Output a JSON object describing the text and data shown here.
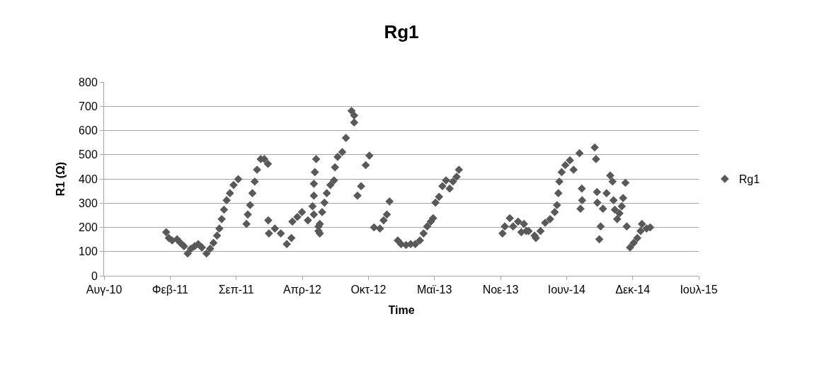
{
  "chart_data": {
    "type": "scatter",
    "title": "Rg1",
    "xlabel": "Time",
    "ylabel": "R1 (Ω)",
    "xlim": [
      "2010-08-12",
      "2015-07-17"
    ],
    "xticks": [
      {
        "value": "2010-08-12",
        "label": "Αυγ-10"
      },
      {
        "value": "2011-02-28",
        "label": "Φεβ-11"
      },
      {
        "value": "2011-09-16",
        "label": "Σεπ-11"
      },
      {
        "value": "2012-04-03",
        "label": "Απρ-12"
      },
      {
        "value": "2012-10-20",
        "label": "Οκτ-12"
      },
      {
        "value": "2013-05-08",
        "label": "Μαϊ-13"
      },
      {
        "value": "2013-11-24",
        "label": "Νοε-13"
      },
      {
        "value": "2014-06-12",
        "label": "Ιουν-14"
      },
      {
        "value": "2014-12-29",
        "label": "Δεκ-14"
      },
      {
        "value": "2015-07-17",
        "label": "Ιουλ-15"
      }
    ],
    "ylim": [
      0,
      800
    ],
    "yticks": [
      0,
      100,
      200,
      300,
      400,
      500,
      600,
      700,
      800
    ],
    "grid": "y",
    "legend": "right",
    "marker": "diamond",
    "series": [
      {
        "name": "Rg1",
        "color": "#595959",
        "x": [
          "2011-02-16",
          "2011-02-24",
          "2011-03-06",
          "2011-03-21",
          "2011-03-31",
          "2011-04-11",
          "2011-04-22",
          "2011-05-02",
          "2011-05-13",
          "2011-05-24",
          "2011-06-04",
          "2011-06-18",
          "2011-06-29",
          "2011-07-09",
          "2011-07-20",
          "2011-07-27",
          "2011-08-03",
          "2011-08-10",
          "2011-08-18",
          "2011-08-28",
          "2011-09-08",
          "2011-09-22",
          "2011-10-17",
          "2011-10-21",
          "2011-10-28",
          "2011-11-04",
          "2011-11-11",
          "2011-11-18",
          "2011-11-29",
          "2011-12-10",
          "2011-12-21",
          "2011-12-22",
          "2011-12-24",
          "2012-01-11",
          "2012-01-29",
          "2012-02-16",
          "2012-03-01",
          "2012-03-04",
          "2012-03-19",
          "2012-04-02",
          "2012-04-20",
          "2012-05-04",
          "2012-05-08",
          "2012-05-08",
          "2012-05-11",
          "2012-05-15",
          "2012-05-22",
          "2012-05-26",
          "2012-05-08",
          "2012-05-22",
          "2012-05-26",
          "2012-06-02",
          "2012-06-09",
          "2012-06-16",
          "2012-06-27",
          "2012-07-08",
          "2012-07-11",
          "2012-07-19",
          "2012-08-02",
          "2012-08-13",
          "2012-08-30",
          "2012-09-07",
          "2012-09-07",
          "2012-09-17",
          "2012-09-28",
          "2012-10-12",
          "2012-10-23",
          "2012-11-06",
          "2012-11-24",
          "2012-12-05",
          "2012-12-15",
          "2012-12-23",
          "2013-01-17",
          "2013-01-27",
          "2013-02-11",
          "2013-02-25",
          "2013-03-11",
          "2013-03-25",
          "2013-04-05",
          "2013-04-16",
          "2013-04-27",
          "2013-05-04",
          "2013-05-11",
          "2013-05-22",
          "2013-06-01",
          "2013-06-12",
          "2013-06-23",
          "2013-07-03",
          "2013-07-14",
          "2013-07-21",
          "2013-11-30",
          "2013-12-07",
          "2013-12-22",
          "2014-01-01",
          "2014-01-16",
          "2014-01-26",
          "2014-02-03",
          "2014-02-10",
          "2014-02-17",
          "2014-03-07",
          "2014-03-11",
          "2014-03-25",
          "2014-04-08",
          "2014-04-23",
          "2014-05-07",
          "2014-05-14",
          "2014-05-18",
          "2014-05-21",
          "2014-05-28",
          "2014-06-08",
          "2014-06-22",
          "2014-07-03",
          "2014-07-21",
          "2014-07-24",
          "2014-07-28",
          "2014-07-29",
          "2014-09-05",
          "2014-09-09",
          "2014-09-12",
          "2014-09-13",
          "2014-09-19",
          "2014-09-23",
          "2014-09-30",
          "2014-10-11",
          "2014-10-22",
          "2014-10-29",
          "2014-11-01",
          "2014-11-05",
          "2014-11-12",
          "2014-11-19",
          "2014-11-26",
          "2014-11-30",
          "2014-12-07",
          "2014-12-11",
          "2014-12-21",
          "2015-01-01",
          "2015-01-12",
          "2015-01-22",
          "2015-01-26",
          "2015-02-09",
          "2015-02-20"
        ],
        "values": [
          180,
          156,
          146,
          151,
          136,
          122,
          92,
          112,
          122,
          131,
          117,
          92,
          112,
          136,
          166,
          195,
          234,
          273,
          312,
          341,
          375,
          399,
          214,
          253,
          292,
          341,
          389,
          438,
          482,
          482,
          462,
          229,
          175,
          195,
          175,
          131,
          156,
          224,
          243,
          263,
          229,
          287,
          331,
          380,
          428,
          482,
          204,
          175,
          253,
          185,
          214,
          263,
          302,
          341,
          375,
          394,
          448,
          491,
          511,
          569,
          681,
          662,
          633,
          331,
          370,
          457,
          496,
          200,
          195,
          229,
          253,
          307,
          146,
          131,
          127,
          131,
          131,
          146,
          175,
          204,
          224,
          238,
          302,
          326,
          370,
          394,
          360,
          389,
          409,
          438,
          175,
          204,
          238,
          204,
          224,
          180,
          214,
          185,
          185,
          166,
          156,
          185,
          219,
          234,
          263,
          292,
          341,
          389,
          428,
          457,
          477,
          438,
          506,
          277,
          360,
          312,
          530,
          482,
          346,
          302,
          151,
          204,
          277,
          341,
          414,
          389,
          312,
          273,
          234,
          258,
          287,
          321,
          384,
          204,
          117,
          136,
          156,
          185,
          214,
          195,
          200
        ]
      }
    ]
  }
}
